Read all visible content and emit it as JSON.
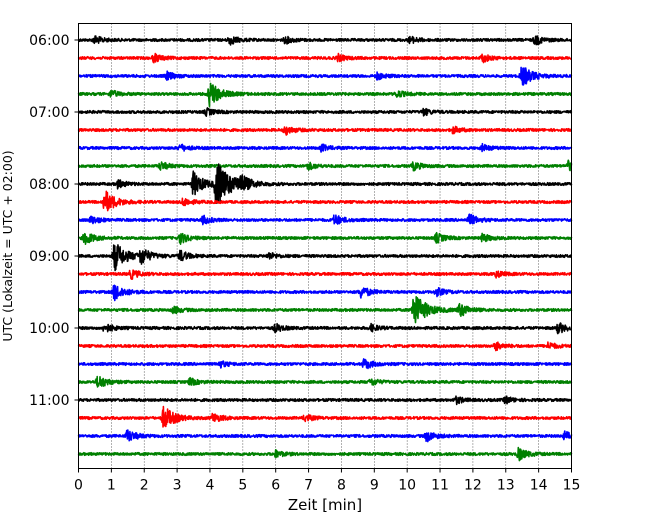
{
  "chart_data": {
    "type": "line",
    "title": "",
    "xlabel": "Zeit  [min]",
    "ylabel": "UTC (Lokalzeit = UTC + 02:00)",
    "xlim": [
      0,
      15
    ],
    "x_ticks": [
      "0",
      "1",
      "2",
      "3",
      "4",
      "5",
      "6",
      "7",
      "8",
      "9",
      "10",
      "11",
      "12",
      "13",
      "14",
      "15"
    ],
    "y_tick_labels": [
      "06:00",
      "07:00",
      "08:00",
      "09:00",
      "10:00",
      "11:00"
    ],
    "grid": "vertical dotted lines at each minute",
    "colors": [
      "#000000",
      "#ff0000",
      "#0000ff",
      "#008000"
    ],
    "traces": [
      {
        "label": "06:00",
        "color": "#000000",
        "events": [
          [
            0.5,
            0.6
          ],
          [
            4.6,
            0.7
          ],
          [
            6.3,
            0.5
          ],
          [
            10.1,
            0.5
          ],
          [
            13.9,
            0.7
          ]
        ]
      },
      {
        "label": "06:15",
        "color": "#ff0000",
        "events": [
          [
            2.3,
            0.6
          ],
          [
            7.9,
            0.5
          ],
          [
            12.3,
            0.6
          ]
        ]
      },
      {
        "label": "06:30",
        "color": "#0000ff",
        "events": [
          [
            2.7,
            0.6
          ],
          [
            9.1,
            0.5
          ],
          [
            13.5,
            1.6
          ]
        ]
      },
      {
        "label": "06:45",
        "color": "#008000",
        "events": [
          [
            4.0,
            1.9
          ],
          [
            1.0,
            0.5
          ],
          [
            9.7,
            0.5
          ]
        ]
      },
      {
        "label": "07:00",
        "color": "#000000",
        "events": [
          [
            3.9,
            0.5
          ],
          [
            10.5,
            0.5
          ]
        ]
      },
      {
        "label": "07:15",
        "color": "#ff0000",
        "events": [
          [
            6.3,
            0.7
          ],
          [
            11.4,
            0.5
          ]
        ]
      },
      {
        "label": "07:30",
        "color": "#0000ff",
        "events": [
          [
            3.1,
            0.5
          ],
          [
            7.4,
            0.5
          ],
          [
            12.3,
            0.5
          ]
        ]
      },
      {
        "label": "07:45",
        "color": "#008000",
        "events": [
          [
            2.5,
            0.6
          ],
          [
            7.0,
            0.5
          ],
          [
            10.2,
            0.6
          ],
          [
            14.9,
            0.7
          ]
        ]
      },
      {
        "label": "08:00",
        "color": "#000000",
        "events": [
          [
            3.5,
            1.8
          ],
          [
            4.2,
            3.5
          ],
          [
            4.9,
            1.2
          ],
          [
            1.2,
            0.6
          ]
        ]
      },
      {
        "label": "08:15",
        "color": "#ff0000",
        "events": [
          [
            0.8,
            1.8
          ],
          [
            3.2,
            0.6
          ]
        ]
      },
      {
        "label": "08:30",
        "color": "#0000ff",
        "events": [
          [
            0.4,
            0.6
          ],
          [
            3.8,
            0.6
          ],
          [
            7.8,
            0.8
          ],
          [
            11.9,
            0.8
          ]
        ]
      },
      {
        "label": "08:45",
        "color": "#008000",
        "events": [
          [
            0.2,
            1.0
          ],
          [
            3.1,
            0.8
          ],
          [
            10.9,
            0.7
          ],
          [
            12.3,
            0.6
          ]
        ]
      },
      {
        "label": "09:00",
        "color": "#000000",
        "events": [
          [
            1.1,
            2.2
          ],
          [
            1.9,
            1.2
          ],
          [
            3.1,
            0.8
          ],
          [
            5.8,
            0.5
          ]
        ]
      },
      {
        "label": "09:15",
        "color": "#ff0000",
        "events": [
          [
            1.6,
            0.7
          ],
          [
            12.7,
            0.5
          ]
        ]
      },
      {
        "label": "09:30",
        "color": "#0000ff",
        "events": [
          [
            1.1,
            1.3
          ],
          [
            8.6,
            0.9
          ],
          [
            10.9,
            0.6
          ]
        ]
      },
      {
        "label": "09:45",
        "color": "#008000",
        "events": [
          [
            10.2,
            2.6
          ],
          [
            11.6,
            1.0
          ],
          [
            2.9,
            0.5
          ]
        ]
      },
      {
        "label": "10:00",
        "color": "#000000",
        "events": [
          [
            0.8,
            0.7
          ],
          [
            6.0,
            0.6
          ],
          [
            8.9,
            0.5
          ],
          [
            14.6,
            0.8
          ]
        ]
      },
      {
        "label": "10:15",
        "color": "#ff0000",
        "events": [
          [
            12.7,
            0.6
          ],
          [
            14.3,
            0.5
          ]
        ]
      },
      {
        "label": "10:30",
        "color": "#0000ff",
        "events": [
          [
            8.7,
            0.8
          ],
          [
            4.3,
            0.5
          ]
        ]
      },
      {
        "label": "10:45",
        "color": "#008000",
        "events": [
          [
            0.6,
            1.0
          ],
          [
            3.4,
            0.5
          ],
          [
            8.9,
            0.5
          ]
        ]
      },
      {
        "label": "11:00",
        "color": "#000000",
        "events": [
          [
            11.5,
            0.5
          ],
          [
            13.0,
            0.5
          ]
        ]
      },
      {
        "label": "11:15",
        "color": "#ff0000",
        "events": [
          [
            2.6,
            1.8
          ],
          [
            4.1,
            0.7
          ],
          [
            6.9,
            0.5
          ]
        ]
      },
      {
        "label": "11:30",
        "color": "#0000ff",
        "events": [
          [
            1.5,
            0.9
          ],
          [
            10.6,
            0.8
          ],
          [
            14.8,
            0.6
          ]
        ]
      },
      {
        "label": "11:45",
        "color": "#008000",
        "events": [
          [
            13.4,
            0.9
          ],
          [
            6.0,
            0.5
          ]
        ]
      }
    ]
  }
}
